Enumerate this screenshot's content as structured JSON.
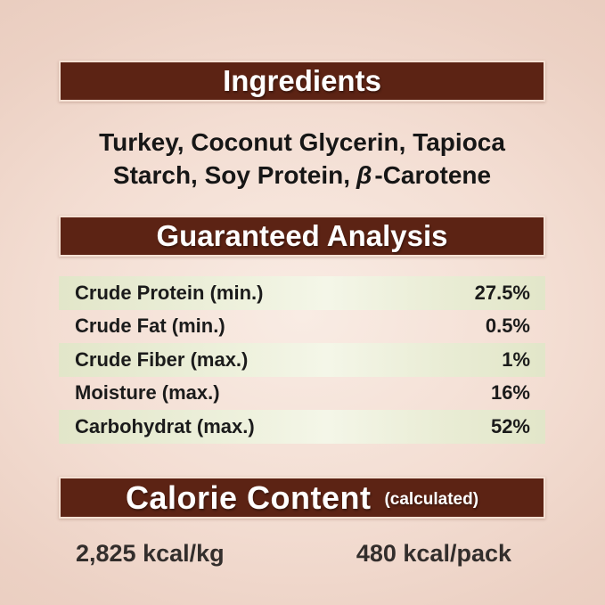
{
  "label": {
    "ingredients": {
      "header": "Ingredients",
      "line1": "Turkey, Coconut Glycerin, Tapioca",
      "line2_prefix": "Starch, Soy Protein,",
      "line2_beta": "β",
      "line2_suffix": "-Carotene"
    },
    "guaranteed_analysis": {
      "header": "Guaranteed Analysis",
      "rows": [
        {
          "name": "Crude Protein (min.)",
          "value": "27.5%"
        },
        {
          "name": "Crude Fat (min.)",
          "value": "0.5%"
        },
        {
          "name": "Crude Fiber (max.)",
          "value": "1%"
        },
        {
          "name": "Moisture (max.)",
          "value": "16%"
        },
        {
          "name": "Carbohydrat (max.)",
          "value": "52%"
        }
      ]
    },
    "calorie_content": {
      "header": "Calorie Content",
      "note": "(calculated)",
      "per_kg": "2,825 kcal/kg",
      "per_pack": "480 kcal/pack"
    },
    "colors": {
      "header_bar": "#5c2314",
      "background": "#eed2c5",
      "row_green": "#e3e6cb",
      "text_dark": "#1b1b1b"
    }
  }
}
